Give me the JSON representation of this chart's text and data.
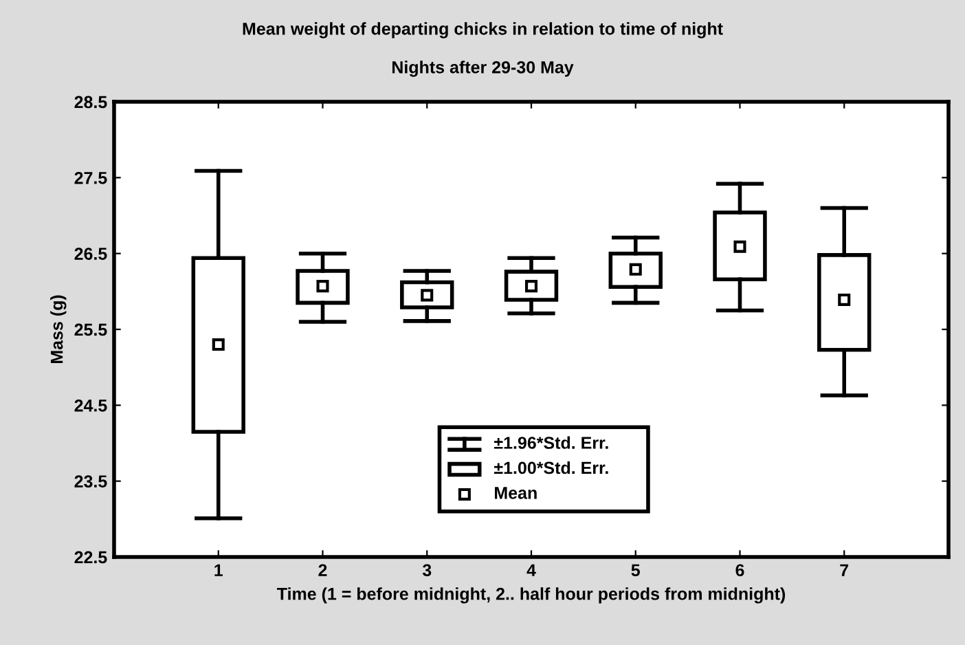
{
  "chart_data": {
    "type": "box",
    "title": "Mean weight of departing chicks in relation to time of night",
    "subtitle": "Nights after 29-30 May",
    "xlabel": "Time (1 = before midnight, 2.. half hour periods from midnight)",
    "ylabel": "Mass (g)",
    "categories": [
      "1",
      "2",
      "3",
      "4",
      "5",
      "6",
      "7"
    ],
    "boxes": [
      {
        "low": 23.01,
        "q1": 24.15,
        "median": 25.3,
        "q3": 26.44,
        "high": 27.59
      },
      {
        "low": 25.6,
        "q1": 25.85,
        "median": 26.07,
        "q3": 26.27,
        "high": 26.5
      },
      {
        "low": 25.61,
        "q1": 25.79,
        "median": 25.95,
        "q3": 26.12,
        "high": 26.27
      },
      {
        "low": 25.71,
        "q1": 25.89,
        "median": 26.07,
        "q3": 26.26,
        "high": 26.44
      },
      {
        "low": 25.85,
        "q1": 26.06,
        "median": 26.29,
        "q3": 26.5,
        "high": 26.71
      },
      {
        "low": 25.75,
        "q1": 26.16,
        "median": 26.59,
        "q3": 27.04,
        "high": 27.42
      },
      {
        "low": 24.63,
        "q1": 25.23,
        "median": 25.89,
        "q3": 26.48,
        "high": 27.1
      }
    ],
    "color": "#000000",
    "ylim": [
      22.5,
      28.5
    ],
    "yticks": [
      22.5,
      23.5,
      24.5,
      25.5,
      26.5,
      27.5,
      28.5
    ],
    "annotations": [
      "±1.96*Std. Err.",
      "±1.00*Std. Err.",
      "Mean"
    ],
    "grid": false
  }
}
